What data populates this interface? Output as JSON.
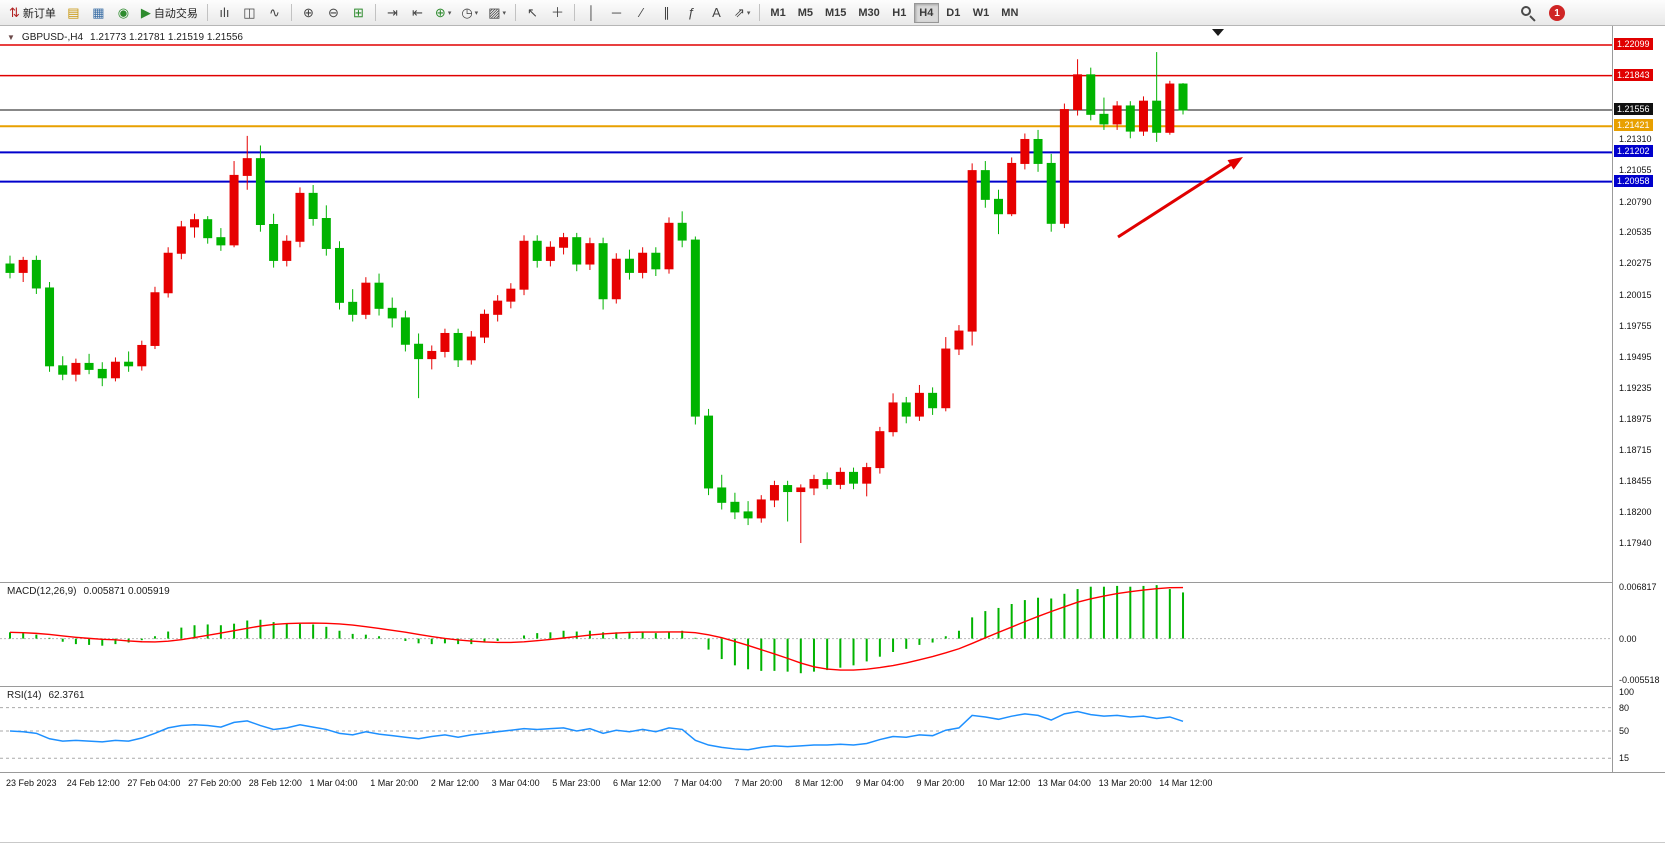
{
  "toolbar": {
    "notification_count": "1",
    "active_timeframe": "H4",
    "timeframes": [
      "M1",
      "M5",
      "M15",
      "M30",
      "H1",
      "H4",
      "D1",
      "W1",
      "MN"
    ],
    "items": [
      {
        "name": "new-order-button",
        "glyph": "⇅",
        "color": "#b22222",
        "label": "新订单"
      },
      {
        "name": "charts-icon",
        "glyph": "▤",
        "color": "#c8960c"
      },
      {
        "name": "market-watch-icon",
        "glyph": "▦",
        "color": "#3a6ea5"
      },
      {
        "name": "navigator-icon",
        "glyph": "◉",
        "color": "#2e8b2e"
      },
      {
        "name": "autotrade-button",
        "glyph": "▶",
        "color": "#2e8b2e",
        "label": "自动交易"
      },
      {
        "sep": true
      },
      {
        "name": "bar-chart-icon",
        "glyph": "ılı",
        "color": "#444444"
      },
      {
        "name": "candlestick-chart-icon",
        "glyph": "◫",
        "color": "#444444"
      },
      {
        "name": "line-chart-icon",
        "glyph": "∿",
        "color": "#444444"
      },
      {
        "sep": true
      },
      {
        "name": "zoom-in-icon",
        "glyph": "⊕",
        "color": "#444444"
      },
      {
        "name": "zoom-out-icon",
        "glyph": "⊖",
        "color": "#444444"
      },
      {
        "name": "tile-windows-icon",
        "glyph": "⊞",
        "color": "#2e8b2e"
      },
      {
        "sep": true
      },
      {
        "name": "auto-scroll-icon",
        "glyph": "⇥",
        "color": "#444444"
      },
      {
        "name": "chart-shift-icon",
        "glyph": "⇤",
        "color": "#444444"
      },
      {
        "name": "indicators-icon",
        "glyph": "⊕",
        "color": "#2e8b2e",
        "caret": true
      },
      {
        "name": "periods-icon",
        "glyph": "◷",
        "color": "#444444",
        "caret": true
      },
      {
        "name": "templates-icon",
        "glyph": "▨",
        "color": "#444444",
        "caret": true
      },
      {
        "sep": true
      },
      {
        "name": "cursor-icon",
        "glyph": "↖",
        "color": "#444444"
      },
      {
        "name": "crosshair-icon",
        "glyph": "＋",
        "color": "#444444"
      },
      {
        "sep": true
      },
      {
        "name": "vertical-line-icon",
        "glyph": "│",
        "color": "#444444"
      },
      {
        "name": "horizontal-line-icon",
        "glyph": "─",
        "color": "#444444"
      },
      {
        "name": "trendline-icon",
        "glyph": "∕",
        "color": "#444444"
      },
      {
        "name": "channel-icon",
        "glyph": "∥",
        "color": "#444444"
      },
      {
        "name": "fibonacci-icon",
        "glyph": "ƒ",
        "color": "#444444"
      },
      {
        "name": "text-icon",
        "glyph": "A",
        "color": "#444444"
      },
      {
        "name": "arrows-icon",
        "glyph": "⇗",
        "color": "#444444",
        "caret": true
      },
      {
        "sep": true
      }
    ]
  },
  "chart_header": {
    "expander": "▼",
    "symbol_period": "GBPUSD-,H4",
    "ohlc": "1.21773 1.21781 1.21519 1.21556"
  },
  "price_axis": {
    "regular_ticks": [
      "1.21310",
      "1.21055",
      "1.20790",
      "1.20535",
      "1.20275",
      "1.20015",
      "1.19755",
      "1.19495",
      "1.19235",
      "1.18975",
      "1.18715",
      "1.18455",
      "1.18200",
      "1.17940"
    ]
  },
  "levels": [
    {
      "price": 1.22099,
      "label": "1.22099",
      "color": "#e00000",
      "line_width": 1.5
    },
    {
      "price": 1.21843,
      "label": "1.21843",
      "color": "#e00000",
      "line_width": 1.5
    },
    {
      "price": 1.21556,
      "label": "1.21556",
      "color": "#111111",
      "line_width": 1
    },
    {
      "price": 1.21421,
      "label": "1.21421",
      "color": "#e8a000",
      "line_width": 2
    },
    {
      "price": 1.21202,
      "label": "1.21202",
      "color": "#0000cc",
      "line_width": 2
    },
    {
      "price": 1.20958,
      "label": "1.20958",
      "color": "#0000cc",
      "line_width": 2
    }
  ],
  "macd_panel": {
    "label": "MACD(12,26,9)",
    "values": "0.005871 0.005919",
    "axis": [
      "0.006817",
      "0.00",
      "-0.005518"
    ]
  },
  "rsi_panel": {
    "label": "RSI(14)",
    "value": "62.3761",
    "axis": [
      "100",
      "80",
      "50",
      "15"
    ]
  },
  "time_axis": [
    "23 Feb 2023",
    "24 Feb 12:00",
    "27 Feb 04:00",
    "27 Feb 20:00",
    "28 Feb 12:00",
    "1 Mar 04:00",
    "1 Mar 20:00",
    "2 Mar 12:00",
    "3 Mar 04:00",
    "5 Mar 23:00",
    "6 Mar 12:00",
    "7 Mar 04:00",
    "7 Mar 20:00",
    "8 Mar 12:00",
    "9 Mar 04:00",
    "9 Mar 20:00",
    "10 Mar 12:00",
    "13 Mar 04:00",
    "13 Mar 20:00",
    "14 Mar 12:00"
  ],
  "chart_data": {
    "type": "candlestick",
    "symbol": "GBPUSD-",
    "timeframe": "H4",
    "price_range_visible": [
      1.1794,
      1.22099
    ],
    "bull_color": "#e60000",
    "bear_color": "#00b300",
    "candles_ohlc": [
      [
        1.2027,
        1.2034,
        1.2015,
        1.202
      ],
      [
        1.202,
        1.2033,
        1.2012,
        1.203
      ],
      [
        1.203,
        1.2034,
        1.2002,
        1.2007
      ],
      [
        1.2007,
        1.2012,
        1.1937,
        1.1942
      ],
      [
        1.1942,
        1.195,
        1.193,
        1.1935
      ],
      [
        1.1935,
        1.1948,
        1.1929,
        1.1944
      ],
      [
        1.1944,
        1.1952,
        1.1935,
        1.1939
      ],
      [
        1.1939,
        1.1945,
        1.1925,
        1.1932
      ],
      [
        1.1932,
        1.1949,
        1.1929,
        1.1945
      ],
      [
        1.1945,
        1.1954,
        1.1937,
        1.1942
      ],
      [
        1.1942,
        1.1963,
        1.1938,
        1.1959
      ],
      [
        1.1959,
        1.2008,
        1.1956,
        1.2003
      ],
      [
        1.2003,
        1.2041,
        1.1999,
        1.2036
      ],
      [
        1.2036,
        1.2063,
        1.2031,
        1.2058
      ],
      [
        1.2058,
        1.2069,
        1.2049,
        1.2064
      ],
      [
        1.2064,
        1.2067,
        1.2044,
        1.2049
      ],
      [
        1.2049,
        1.2057,
        1.2038,
        1.2043
      ],
      [
        1.2043,
        1.2113,
        1.2041,
        1.2101
      ],
      [
        1.2101,
        1.2134,
        1.2089,
        1.2115
      ],
      [
        1.2115,
        1.2126,
        1.2054,
        1.206
      ],
      [
        1.206,
        1.2069,
        1.2024,
        1.203
      ],
      [
        1.203,
        1.2051,
        1.2025,
        1.2046
      ],
      [
        1.2046,
        1.2091,
        1.2041,
        1.2086
      ],
      [
        1.2086,
        1.2093,
        1.2059,
        1.2065
      ],
      [
        1.2065,
        1.2076,
        1.2034,
        1.204
      ],
      [
        1.204,
        1.2046,
        1.1989,
        1.1995
      ],
      [
        1.1995,
        1.2006,
        1.1979,
        1.1985
      ],
      [
        1.1985,
        1.2016,
        1.1981,
        1.2011
      ],
      [
        1.2011,
        1.2019,
        1.1984,
        1.199
      ],
      [
        1.199,
        1.1999,
        1.1974,
        1.1982
      ],
      [
        1.1982,
        1.1988,
        1.1954,
        1.196
      ],
      [
        1.196,
        1.1969,
        1.1915,
        1.1948
      ],
      [
        1.1948,
        1.1959,
        1.1939,
        1.1954
      ],
      [
        1.1954,
        1.1973,
        1.1949,
        1.1969
      ],
      [
        1.1969,
        1.1973,
        1.1941,
        1.1947
      ],
      [
        1.1947,
        1.1971,
        1.1943,
        1.1966
      ],
      [
        1.1966,
        1.1989,
        1.1961,
        1.1985
      ],
      [
        1.1985,
        1.2001,
        1.1979,
        1.1996
      ],
      [
        1.1996,
        1.2011,
        1.199,
        1.2006
      ],
      [
        1.2006,
        1.2051,
        1.2001,
        1.2046
      ],
      [
        1.2046,
        1.2051,
        1.2024,
        1.203
      ],
      [
        1.203,
        1.2046,
        1.2025,
        1.2041
      ],
      [
        1.2041,
        1.2053,
        1.2035,
        1.2049
      ],
      [
        1.2049,
        1.2053,
        1.2021,
        1.2027
      ],
      [
        1.2027,
        1.2049,
        1.2022,
        1.2044
      ],
      [
        1.2044,
        1.2049,
        1.1989,
        1.1998
      ],
      [
        1.1998,
        1.2036,
        1.1994,
        1.2031
      ],
      [
        1.2031,
        1.2039,
        1.2014,
        1.202
      ],
      [
        1.202,
        1.2041,
        1.2015,
        1.2036
      ],
      [
        1.2036,
        1.2041,
        1.2017,
        1.2023
      ],
      [
        1.2023,
        1.2066,
        1.2019,
        1.2061
      ],
      [
        1.2061,
        1.2071,
        1.2041,
        1.2047
      ],
      [
        1.2047,
        1.205,
        1.1893,
        1.19
      ],
      [
        1.19,
        1.1906,
        1.1834,
        1.184
      ],
      [
        1.184,
        1.1851,
        1.1822,
        1.1828
      ],
      [
        1.1828,
        1.1836,
        1.1814,
        1.182
      ],
      [
        1.182,
        1.1829,
        1.1809,
        1.1815
      ],
      [
        1.1815,
        1.1834,
        1.1811,
        1.183
      ],
      [
        1.183,
        1.1846,
        1.1824,
        1.1842
      ],
      [
        1.1842,
        1.1846,
        1.1812,
        1.1837
      ],
      [
        1.1837,
        1.1843,
        1.1794,
        1.184
      ],
      [
        1.184,
        1.1851,
        1.1834,
        1.1847
      ],
      [
        1.1847,
        1.1853,
        1.1839,
        1.1843
      ],
      [
        1.1843,
        1.1857,
        1.1839,
        1.1853
      ],
      [
        1.1853,
        1.1857,
        1.1839,
        1.1844
      ],
      [
        1.1844,
        1.1861,
        1.1833,
        1.1857
      ],
      [
        1.1857,
        1.1891,
        1.1852,
        1.1887
      ],
      [
        1.1887,
        1.1919,
        1.1883,
        1.1911
      ],
      [
        1.1911,
        1.1916,
        1.1894,
        1.19
      ],
      [
        1.19,
        1.1926,
        1.1896,
        1.1919
      ],
      [
        1.1919,
        1.1924,
        1.1901,
        1.1907
      ],
      [
        1.1907,
        1.1966,
        1.1904,
        1.1956
      ],
      [
        1.1956,
        1.1976,
        1.1951,
        1.1971
      ],
      [
        1.1971,
        1.2111,
        1.1959,
        1.2105
      ],
      [
        1.2105,
        1.2113,
        1.2074,
        1.2081
      ],
      [
        1.2081,
        1.2089,
        1.2052,
        1.2069
      ],
      [
        1.2069,
        1.2116,
        1.2067,
        1.2111
      ],
      [
        1.2111,
        1.2136,
        1.2106,
        1.2131
      ],
      [
        1.2131,
        1.2139,
        1.2104,
        1.2111
      ],
      [
        1.2111,
        1.2119,
        1.2054,
        1.2061
      ],
      [
        1.2061,
        1.2161,
        1.2057,
        1.2156
      ],
      [
        1.2156,
        1.2198,
        1.2151,
        1.2185
      ],
      [
        1.2185,
        1.2191,
        1.2147,
        1.2152
      ],
      [
        1.2152,
        1.2166,
        1.2139,
        1.2144
      ],
      [
        1.2144,
        1.2163,
        1.2139,
        1.2159
      ],
      [
        1.2159,
        1.2163,
        1.2132,
        1.2138
      ],
      [
        1.2138,
        1.2167,
        1.2134,
        1.2163
      ],
      [
        1.2163,
        1.2204,
        1.2129,
        1.2137
      ],
      [
        1.2137,
        1.218,
        1.2135,
        1.21773
      ],
      [
        1.21773,
        1.21781,
        1.21519,
        1.21556
      ]
    ],
    "macd": {
      "type": "bar+line",
      "histogram_color": "#00b300",
      "signal_color": "#ff0000",
      "signal_period": 9,
      "range": [
        -0.005518,
        0.006817
      ],
      "values": [
        0.0008,
        0.0007,
        0.0005,
        0.0001,
        -0.0004,
        -0.0007,
        -0.0008,
        -0.0009,
        -0.0007,
        -0.0005,
        -0.0002,
        0.0003,
        0.0009,
        0.0014,
        0.0017,
        0.0018,
        0.0017,
        0.0019,
        0.0023,
        0.0024,
        0.0021,
        0.0019,
        0.0019,
        0.0018,
        0.0015,
        0.001,
        0.0006,
        0.0005,
        0.0003,
        0.0,
        -0.0003,
        -0.0006,
        -0.0007,
        -0.0006,
        -0.0007,
        -0.0007,
        -0.0005,
        -0.0003,
        0.0,
        0.0004,
        0.0007,
        0.0008,
        0.001,
        0.0009,
        0.001,
        0.0008,
        0.0008,
        0.0007,
        0.0008,
        0.0007,
        0.0009,
        0.001,
        0.0001,
        -0.0014,
        -0.0026,
        -0.0034,
        -0.0039,
        -0.0041,
        -0.0041,
        -0.0042,
        -0.0044,
        -0.0042,
        -0.004,
        -0.0037,
        -0.0034,
        -0.0029,
        -0.0023,
        -0.0017,
        -0.0013,
        -0.0008,
        -0.0005,
        0.0003,
        0.001,
        0.0027,
        0.0035,
        0.0039,
        0.0044,
        0.0049,
        0.0052,
        0.0051,
        0.0057,
        0.0063,
        0.0066,
        0.0066,
        0.0067,
        0.0066,
        0.0067,
        0.0068,
        0.0063,
        0.005871
      ]
    },
    "rsi": {
      "type": "line",
      "line_color": "#1e90ff",
      "range": [
        0,
        100
      ],
      "levels": [
        80,
        50,
        15
      ],
      "values": [
        50,
        49,
        47,
        40,
        37,
        38,
        37,
        36,
        38,
        37,
        41,
        47,
        54,
        57,
        58,
        57,
        55,
        61,
        63,
        57,
        52,
        54,
        58,
        55,
        52,
        47,
        45,
        49,
        46,
        44,
        42,
        40,
        43,
        45,
        42,
        45,
        47,
        49,
        51,
        53,
        52,
        53,
        54,
        50,
        53,
        47,
        51,
        49,
        52,
        49,
        54,
        52,
        38,
        32,
        29,
        27,
        26,
        29,
        31,
        30,
        31,
        32,
        32,
        33,
        32,
        34,
        39,
        43,
        42,
        45,
        44,
        51,
        54,
        70,
        68,
        65,
        69,
        72,
        70,
        64,
        72,
        75,
        71,
        69,
        70,
        68,
        69,
        66,
        68,
        62.3761
      ]
    },
    "drawings": {
      "trend_arrow": {
        "color": "#e00000",
        "direction": "up-right"
      }
    }
  }
}
